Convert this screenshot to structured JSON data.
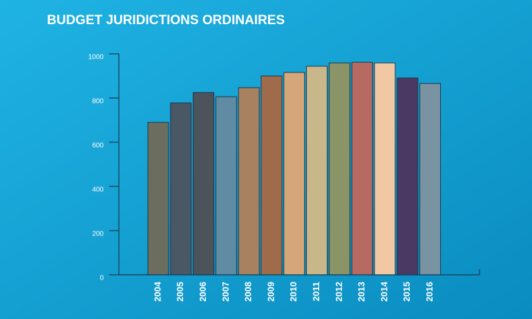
{
  "chart_data": {
    "type": "bar",
    "title": "BUDGET JURIDICTIONS ORDINAIRES",
    "categories": [
      "2004",
      "2005",
      "2006",
      "2007",
      "2008",
      "2009",
      "2010",
      "2011",
      "2012",
      "2013",
      "2014",
      "2015",
      "2016"
    ],
    "values": [
      690,
      778,
      825,
      806,
      847,
      900,
      916,
      944,
      959,
      962,
      959,
      891,
      866
    ],
    "colors": [
      "#6b6e5f",
      "#4a5866",
      "#4d535a",
      "#5f8ca3",
      "#a88260",
      "#a06b4a",
      "#d4a67a",
      "#c8b78a",
      "#8a9466",
      "#b56a62",
      "#f0c9a4",
      "#4a3a63",
      "#7a93a3"
    ],
    "ylim": [
      0,
      1000
    ],
    "yticks": [
      0,
      200,
      400,
      600,
      800,
      1000
    ],
    "grid": false
  }
}
